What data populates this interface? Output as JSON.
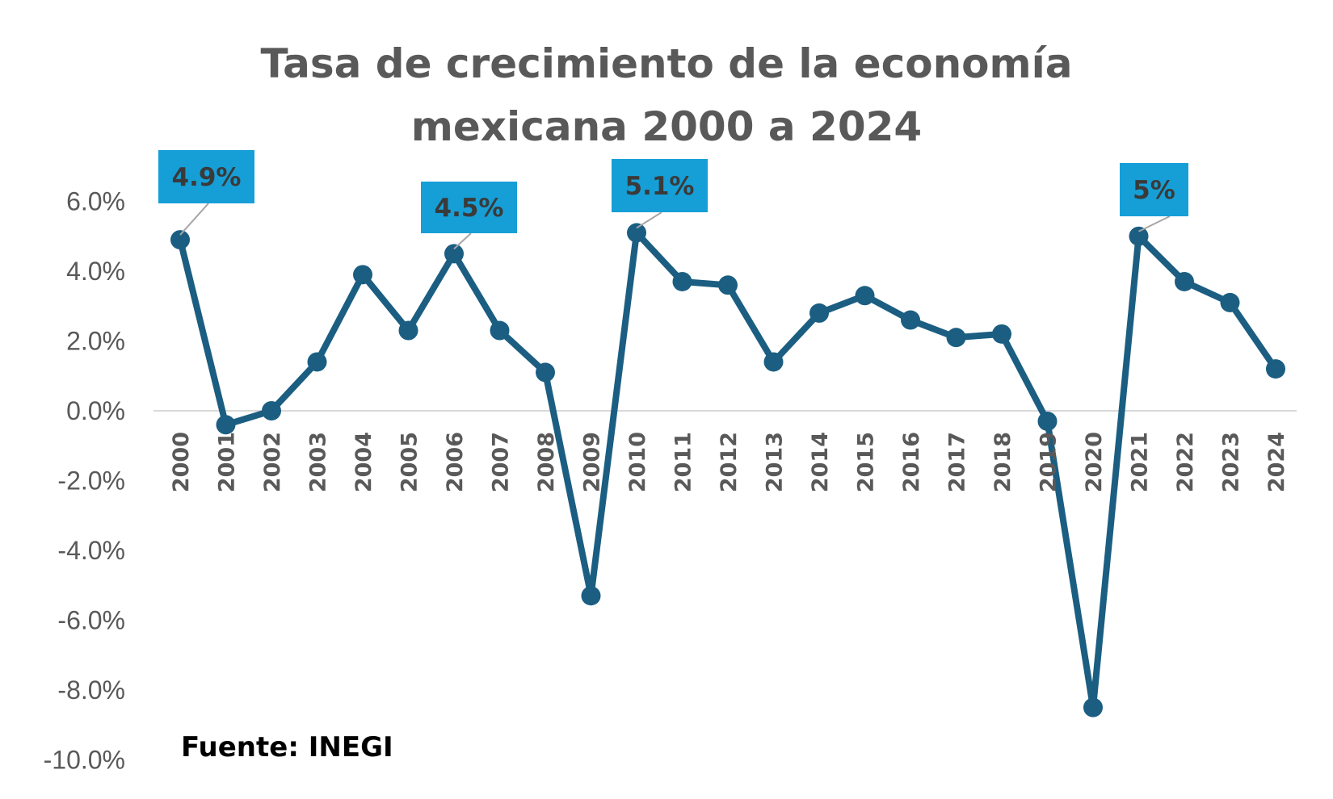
{
  "chart_data": {
    "type": "line",
    "title": [
      "Tasa de crecimiento de la economía",
      "mexicana 2000 a 2024"
    ],
    "xlabel": "",
    "ylabel": "",
    "x": [
      "2000",
      "2001",
      "2002",
      "2003",
      "2004",
      "2005",
      "2006",
      "2007",
      "2008",
      "2009",
      "2010",
      "2011",
      "2012",
      "2013",
      "2014",
      "2015",
      "2016",
      "2017",
      "2018",
      "2019",
      "2020",
      "2021",
      "2022",
      "2023",
      "2024"
    ],
    "series": [
      {
        "name": "",
        "values": [
          4.9,
          -0.4,
          0.0,
          1.4,
          3.9,
          2.3,
          4.5,
          2.3,
          1.1,
          -5.3,
          5.1,
          3.7,
          3.6,
          1.4,
          2.8,
          3.3,
          2.6,
          2.1,
          2.2,
          -0.3,
          -8.5,
          5.0,
          3.7,
          3.1,
          1.2
        ]
      }
    ],
    "ylim": [
      -10,
      6
    ],
    "yticks": [
      6,
      4,
      2,
      0,
      -2,
      -4,
      -6,
      -8,
      -10
    ],
    "ytick_labels": [
      "6.0%",
      "4.0%",
      "2.0%",
      "0.0%",
      "-2.0%",
      "-4.0%",
      "-6.0%",
      "-8.0%",
      "-10.0%"
    ],
    "grid": false,
    "legend": "none",
    "annotations": [
      {
        "x": "2000",
        "label": "4.9%"
      },
      {
        "x": "2006",
        "label": "4.5%"
      },
      {
        "x": "2010",
        "label": "5.1%"
      },
      {
        "x": "2021",
        "label": "5%"
      }
    ],
    "source": "Fuente: INEGI",
    "colors": {
      "line": "#1b5e82",
      "callout": "#169fd6",
      "zero_line": "#d9d9d9"
    }
  }
}
